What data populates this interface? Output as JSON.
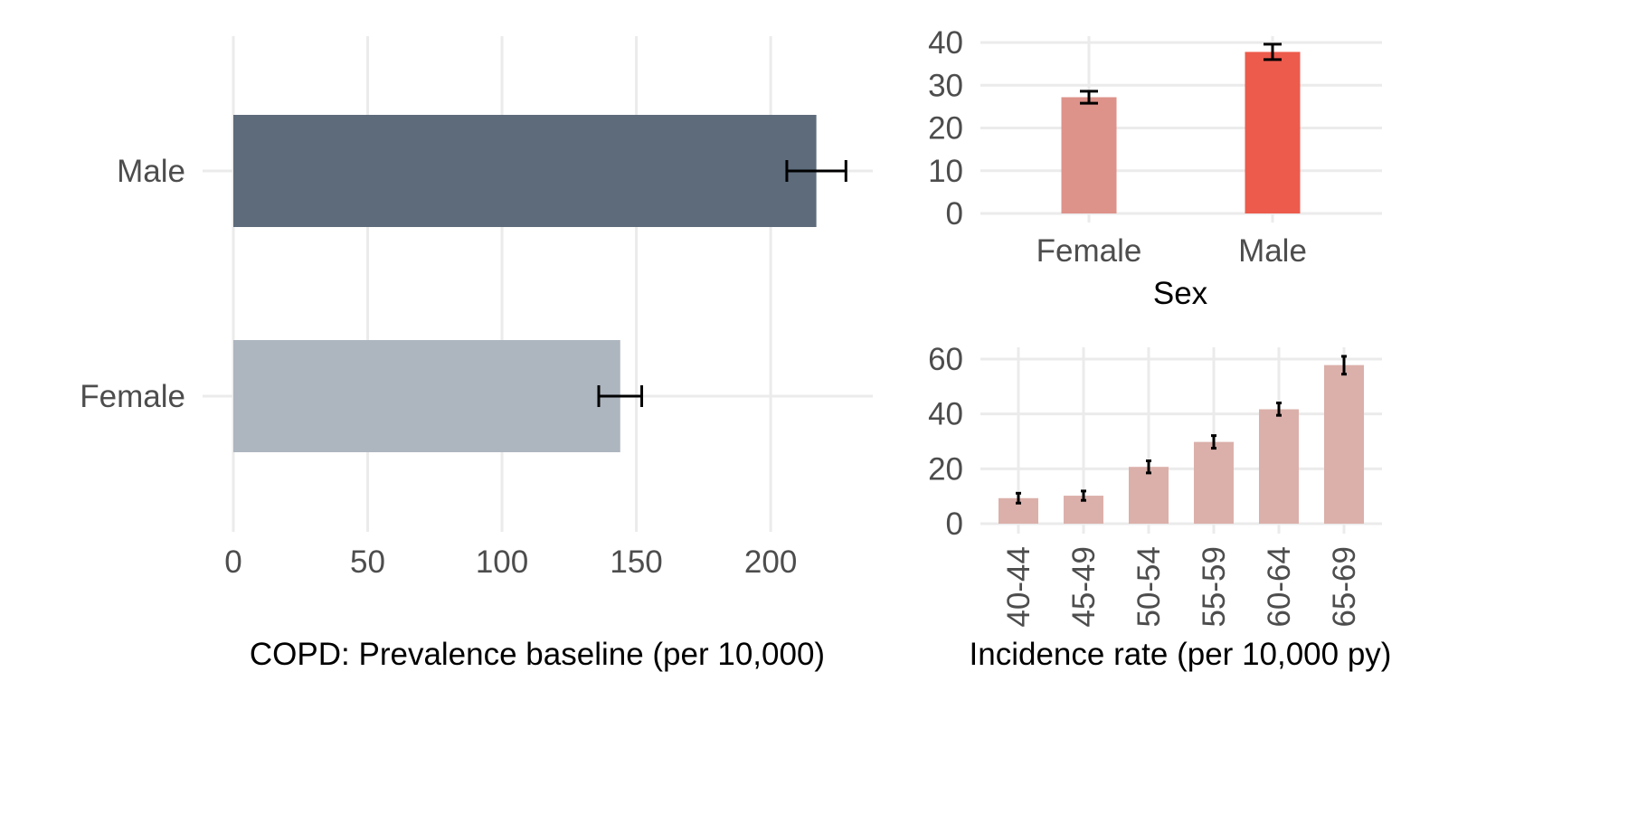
{
  "chart_data": [
    {
      "type": "bar",
      "orientation": "horizontal",
      "categories": [
        "Female",
        "Male"
      ],
      "values": [
        144,
        217
      ],
      "error_low": [
        136,
        206
      ],
      "error_high": [
        152,
        228
      ],
      "colors": [
        "#adb5bf",
        "#5d6b7b"
      ],
      "xlabel": "COPD: Prevalence baseline (per 10,000)",
      "ylabel": "",
      "xlim": [
        0,
        238
      ],
      "xticks": [
        "0",
        "50",
        "100",
        "150",
        "200"
      ],
      "grid": true
    },
    {
      "type": "bar",
      "categories": [
        "Female",
        "Male"
      ],
      "values": [
        27.2,
        37.8
      ],
      "error_low": [
        25.8,
        36.0
      ],
      "error_high": [
        28.6,
        39.6
      ],
      "colors": [
        "#dd928a",
        "#ec5b4c"
      ],
      "xlabel": "Sex",
      "ylabel": "",
      "ylim": [
        0,
        41.5
      ],
      "yticks": [
        "0",
        "10",
        "20",
        "30",
        "40"
      ],
      "grid": true
    },
    {
      "type": "bar",
      "categories": [
        "40-44",
        "45-49",
        "50-54",
        "55-59",
        "60-64",
        "65-69"
      ],
      "values": [
        9.3,
        10.2,
        20.7,
        29.8,
        41.7,
        57.8
      ],
      "error_low": [
        7.5,
        8.5,
        18.5,
        27.5,
        39.5,
        54.5
      ],
      "error_high": [
        11.1,
        11.9,
        22.9,
        32.1,
        44.0,
        61.0
      ],
      "colors": [
        "#dbb0aa"
      ],
      "xlabel": "Incidence rate (per 10,000 py)",
      "ylabel": "",
      "ylim": [
        0,
        63
      ],
      "yticks": [
        "0",
        "20",
        "40",
        "60"
      ],
      "grid": true
    }
  ]
}
